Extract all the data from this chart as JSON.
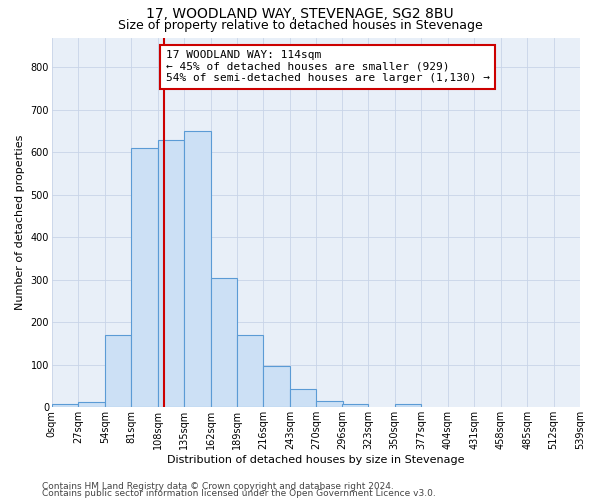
{
  "title": "17, WOODLAND WAY, STEVENAGE, SG2 8BU",
  "subtitle": "Size of property relative to detached houses in Stevenage",
  "xlabel": "Distribution of detached houses by size in Stevenage",
  "ylabel": "Number of detached properties",
  "bin_width": 27,
  "bin_starts": [
    0,
    27,
    54,
    81,
    108,
    135,
    162,
    189,
    216,
    243,
    270,
    296,
    323,
    350,
    377,
    404,
    431,
    458,
    485,
    512
  ],
  "bar_heights": [
    7,
    12,
    170,
    610,
    630,
    650,
    305,
    170,
    97,
    43,
    15,
    7,
    0,
    7,
    0,
    0,
    0,
    0,
    0,
    0
  ],
  "bar_face_color": "#cce0f5",
  "bar_edge_color": "#5b9bd5",
  "property_value": 114,
  "vline_color": "#cc0000",
  "annotation_text": "17 WOODLAND WAY: 114sqm\n← 45% of detached houses are smaller (929)\n54% of semi-detached houses are larger (1,130) →",
  "annotation_box_color": "#ffffff",
  "annotation_box_edgecolor": "#cc0000",
  "ylim": [
    0,
    870
  ],
  "yticks": [
    0,
    100,
    200,
    300,
    400,
    500,
    600,
    700,
    800
  ],
  "grid_color": "#c8d4e8",
  "background_color": "#e8eff8",
  "footer_line1": "Contains HM Land Registry data © Crown copyright and database right 2024.",
  "footer_line2": "Contains public sector information licensed under the Open Government Licence v3.0.",
  "title_fontsize": 10,
  "subtitle_fontsize": 9,
  "xlabel_fontsize": 8,
  "ylabel_fontsize": 8,
  "tick_fontsize": 7,
  "annotation_fontsize": 8,
  "footer_fontsize": 6.5
}
